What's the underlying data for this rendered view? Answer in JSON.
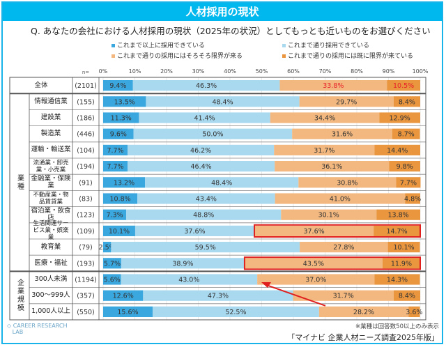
{
  "header": {
    "title": "人材採用の現状",
    "question": "Q.  あなたの会社における人材採用の現状（2025年の状況）としてもっとも近いものをお選びください"
  },
  "chart_data": {
    "type": "bar",
    "stacked": true,
    "orientation": "horizontal",
    "xlim": [
      0,
      100
    ],
    "x_ticks": [
      "0%",
      "10%",
      "20%",
      "30%",
      "40%",
      "50%",
      "60%",
      "70%",
      "80%",
      "90%",
      "100%"
    ],
    "n_label": "n=",
    "series": [
      {
        "name": "これまで以上に採用できている",
        "color": "#3ba7df"
      },
      {
        "name": "これまで通り採用できている",
        "color": "#a9d9ef"
      },
      {
        "name": "これまで通りの採用にはそろそろ限界が来る",
        "color": "#f2b87f"
      },
      {
        "name": "これまで通りの採用には既に限界が来ている",
        "color": "#e9963f"
      }
    ],
    "groups": [
      {
        "label": "業種",
        "rows": [
          1,
          11
        ]
      },
      {
        "label": "企業規模",
        "rows": [
          12,
          14
        ]
      }
    ],
    "rows": [
      {
        "label": "全体",
        "n": "(2101)",
        "values": [
          9.4,
          46.3,
          33.8,
          10.5
        ],
        "red_labels": true
      },
      {
        "label": "情報通信業",
        "n": "(155)",
        "values": [
          13.5,
          48.4,
          29.7,
          8.4
        ]
      },
      {
        "label": "建設業",
        "n": "(186)",
        "values": [
          11.3,
          41.4,
          34.4,
          12.9
        ]
      },
      {
        "label": "製造業",
        "n": "(446)",
        "values": [
          9.6,
          50.0,
          31.6,
          8.7
        ]
      },
      {
        "label": "運輸・輸送業",
        "n": "(104)",
        "values": [
          7.7,
          46.2,
          31.7,
          14.4
        ]
      },
      {
        "label": "流通業・卸売業・小売業",
        "n": "(194)",
        "values": [
          7.7,
          46.4,
          36.1,
          9.8
        ]
      },
      {
        "label": "金融業・保険業",
        "n": "(91)",
        "values": [
          13.2,
          48.4,
          30.8,
          7.7
        ]
      },
      {
        "label": "不動産業・物品賃貸業",
        "n": "(83)",
        "values": [
          10.8,
          43.4,
          41.0,
          4.8
        ]
      },
      {
        "label": "宿泊業・飲食店",
        "n": "(123)",
        "values": [
          7.3,
          48.8,
          30.1,
          13.8
        ]
      },
      {
        "label": "生活関連サービス業・娯楽業",
        "n": "(109)",
        "values": [
          10.1,
          37.6,
          37.6,
          14.7
        ],
        "highlight": true
      },
      {
        "label": "教育業",
        "n": "(79)",
        "values": [
          2.5,
          59.5,
          27.8,
          10.1
        ]
      },
      {
        "label": "医療・福祉",
        "n": "(193)",
        "values": [
          5.7,
          38.9,
          43.5,
          11.9
        ],
        "highlight": true
      },
      {
        "label": "300人未満",
        "n": "(1194)",
        "values": [
          5.6,
          43.0,
          37.0,
          14.3
        ]
      },
      {
        "label": "300～999人",
        "n": "(357)",
        "values": [
          12.6,
          47.3,
          31.7,
          8.4
        ]
      },
      {
        "label": "1,000人以上",
        "n": "(550)",
        "values": [
          15.6,
          52.5,
          28.2,
          3.6
        ]
      }
    ]
  },
  "footer": {
    "note": "※業種は回答数50以上のみ表示",
    "source": "「マイナビ 企業人材ニーズ調査2025年版」",
    "logo": "マイナビ CAREER RESEARCH LAB キャリアリサーチLab"
  }
}
